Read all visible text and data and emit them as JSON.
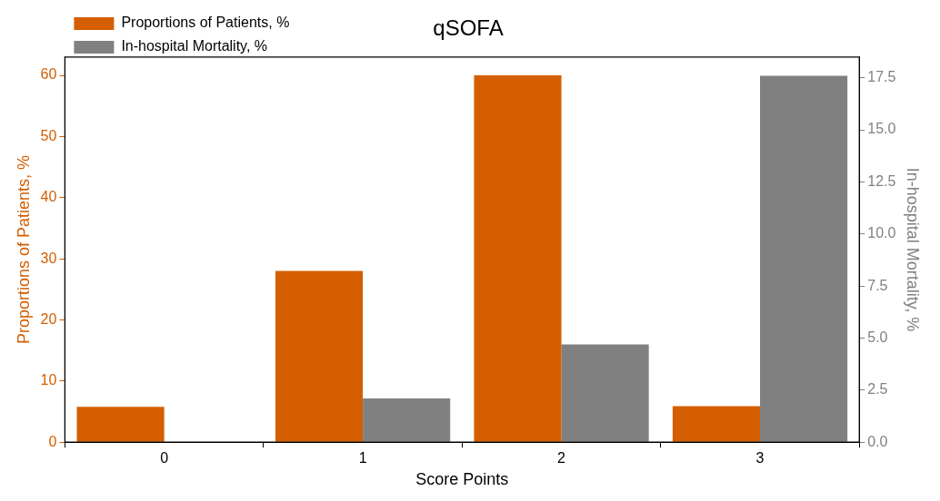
{
  "chart_data": {
    "type": "bar",
    "title": "qSOFA",
    "xlabel": "Score Points",
    "ylabel": "Proportions of Patients, %",
    "y2label": "In-hospital Mortality, %",
    "categories": [
      "0",
      "1",
      "2",
      "3"
    ],
    "series": [
      {
        "name": "Proportions of Patients, %",
        "color": "#d55e00",
        "values": [
          5.8,
          28,
          60,
          5.9
        ]
      },
      {
        "name": "In-hospital Mortality, %",
        "color": "#808080",
        "axis": "y2",
        "values": [
          0,
          2.1,
          4.7,
          17.6
        ]
      }
    ],
    "ylim": [
      0,
      63
    ],
    "yticks": [
      0,
      10,
      20,
      30,
      40,
      50,
      60
    ],
    "y2lim": [
      0,
      18.5
    ],
    "y2ticks": [
      {
        "value": 0,
        "label": "0.0"
      },
      {
        "value": 2.5,
        "label": "2.5"
      },
      {
        "value": 5,
        "label": "5.0"
      },
      {
        "value": 7.5,
        "label": "7.5"
      },
      {
        "value": 10,
        "label": "10.0"
      },
      {
        "value": 12.5,
        "label": "12.5"
      },
      {
        "value": 15,
        "label": "15.0"
      },
      {
        "value": 17.5,
        "label": "17.5"
      }
    ],
    "grid": false,
    "legend": "top left"
  }
}
